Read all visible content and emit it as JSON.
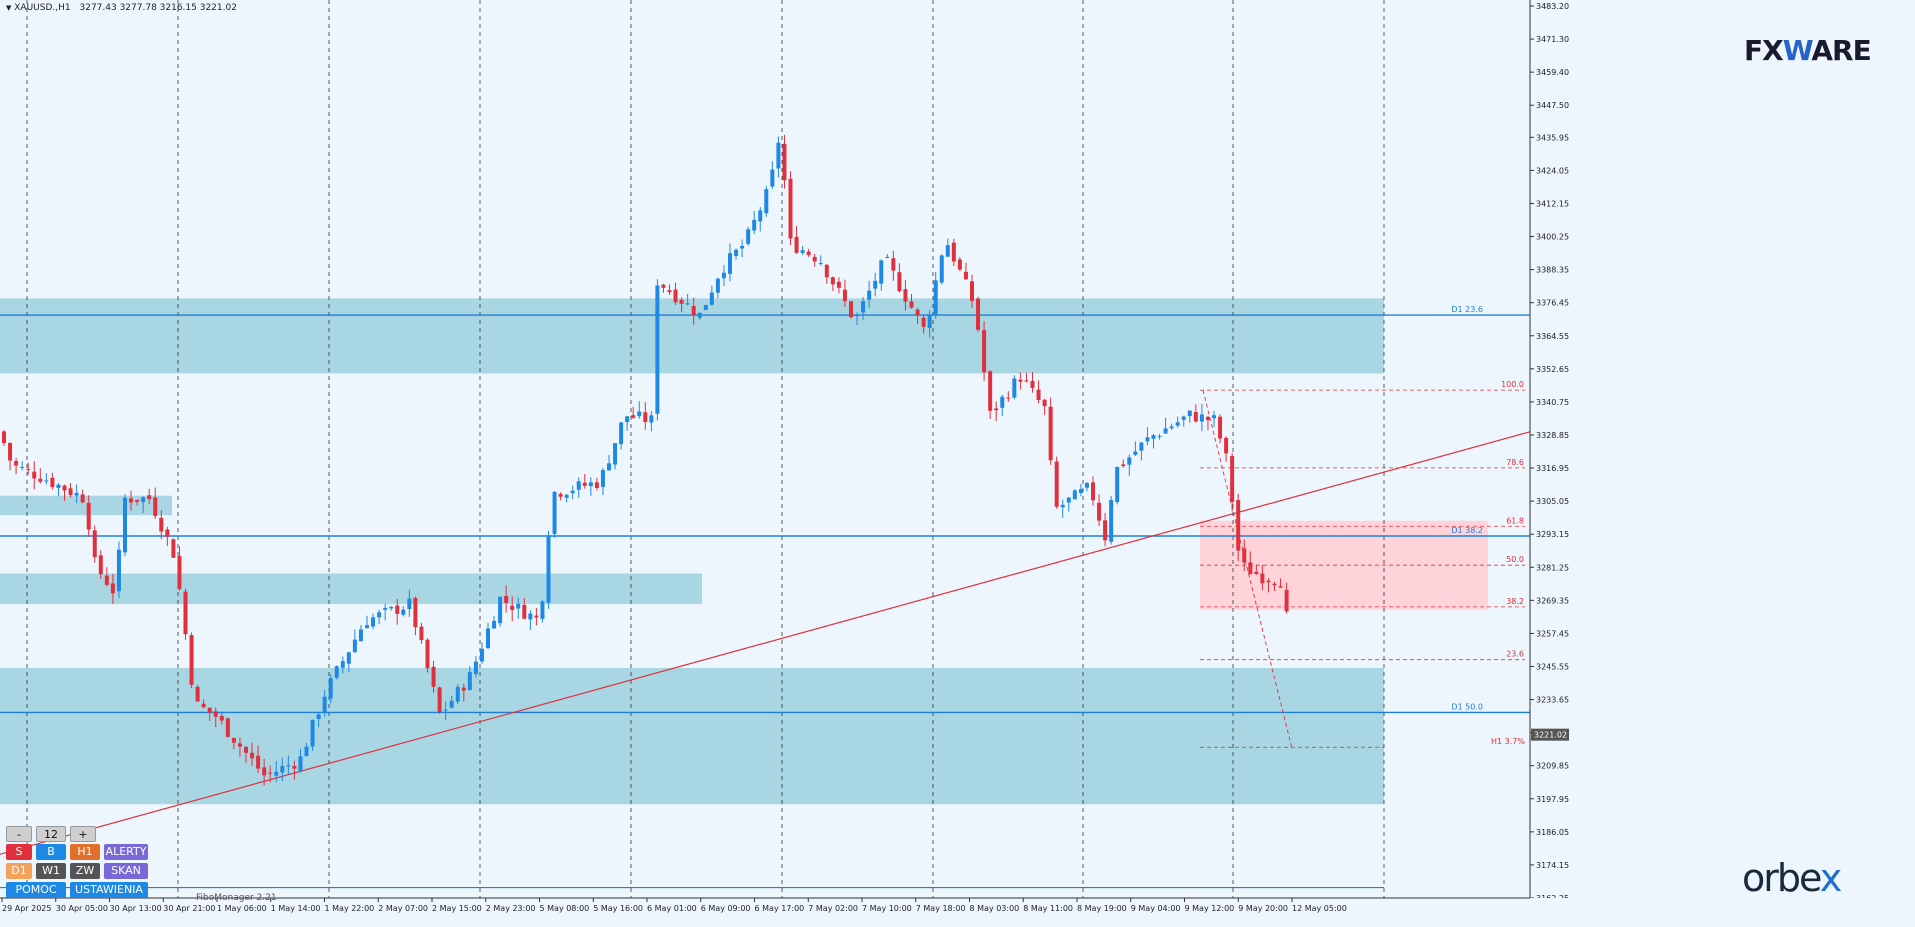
{
  "header": {
    "symbol": "XAUUSD.,H1",
    "ohlc": "3277.43 3277.78 3216.15 3221.02"
  },
  "logos": {
    "fx_left": "FX",
    "fx_mid": "W",
    "fx_right": "ARE",
    "orbex_left": "orbe",
    "orbex_x": "x"
  },
  "watermark": "FiboMonager 2.21",
  "panel": {
    "minus": "-",
    "value": "12",
    "plus": "+",
    "row1": [
      "S",
      "B",
      "H1",
      "ALERTY"
    ],
    "row2": [
      "D1",
      "W1",
      "ZW",
      "SKAN"
    ],
    "row3": [
      "POMOC",
      "USTAWIENIA"
    ]
  },
  "colors": {
    "background": "#eef6fd",
    "bull": "#1e88e5",
    "bear": "#e0303d",
    "zone": "#a9d6e3",
    "level_line": "#1e7fd8",
    "fib": "#e0303d",
    "price_tag": "#555555"
  },
  "chart_data": {
    "type": "candlestick",
    "symbol": "XAUUSD.",
    "timeframe": "H1",
    "ylim": [
      3162.25,
      3483.2
    ],
    "y_ticks": [
      "3483.20",
      "3471.30",
      "3459.40",
      "3447.50",
      "3435.95",
      "3424.05",
      "3412.15",
      "3400.25",
      "3388.35",
      "3376.45",
      "3364.55",
      "3352.65",
      "3340.75",
      "3328.85",
      "3316.95",
      "3305.05",
      "3293.15",
      "3281.25",
      "3269.35",
      "3257.45",
      "3245.55",
      "3233.65",
      "3221.75",
      "3209.85",
      "3197.95",
      "3186.05",
      "3174.15",
      "3162.25"
    ],
    "x_ticks": [
      "29 Apr 2025",
      "30 Apr 05:00",
      "30 Apr 13:00",
      "30 Apr 21:00",
      "1 May 06:00",
      "1 May 14:00",
      "1 May 22:00",
      "2 May 07:00",
      "2 May 15:00",
      "2 May 23:00",
      "5 May 08:00",
      "5 May 16:00",
      "6 May 01:00",
      "6 May 09:00",
      "6 May 17:00",
      "7 May 02:00",
      "7 May 10:00",
      "7 May 18:00",
      "8 May 03:00",
      "8 May 11:00",
      "8 May 19:00",
      "9 May 04:00",
      "9 May 12:00",
      "9 May 20:00",
      "12 May 05:00"
    ],
    "current_price": "3221.02",
    "zones": [
      {
        "from": 3351,
        "to": 3378
      },
      {
        "from": 3300,
        "to": 3307
      },
      {
        "from": 3268,
        "to": 3279
      },
      {
        "from": 3196,
        "to": 3245
      }
    ],
    "trendline": {
      "from_price": 3178,
      "to_price": 3330
    },
    "fib_zone": {
      "from": 3266,
      "to": 3298
    },
    "level_labels": [
      {
        "label": "D1 23.6",
        "price": 3372
      },
      {
        "label": "D1 38.2",
        "price": 3292.5
      },
      {
        "label": "D1 50.0",
        "price": 3229
      },
      {
        "label": "H1 3.7%",
        "price": 3216.5
      }
    ],
    "fib_labels": [
      {
        "label": "100.0",
        "price": 3345
      },
      {
        "label": "78.6",
        "price": 3317
      },
      {
        "label": "61.8",
        "price": 3296
      },
      {
        "label": "50.0",
        "price": 3282
      },
      {
        "label": "38.2",
        "price": 3267
      },
      {
        "label": "23.6",
        "price": 3248
      }
    ],
    "grid": true
  }
}
